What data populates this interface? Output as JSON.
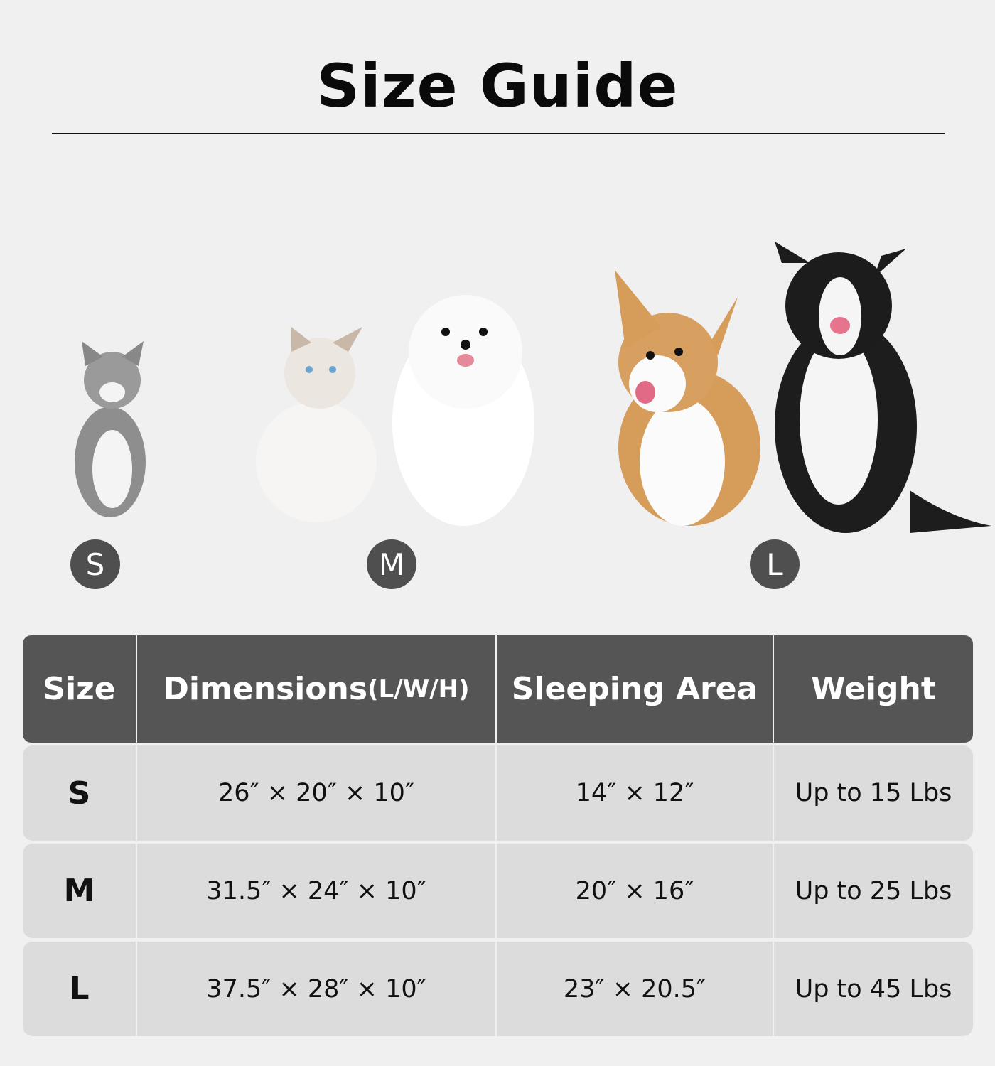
{
  "title": "Size Guide",
  "pets": [
    {
      "size": "S",
      "animals": [
        "tabby-cat"
      ]
    },
    {
      "size": "M",
      "animals": [
        "ragdoll-cat",
        "pomeranian-dog"
      ]
    },
    {
      "size": "L",
      "animals": [
        "corgi-dog",
        "border-collie-dog"
      ]
    }
  ],
  "colors": {
    "background": "#f0f0f0",
    "header": "#555555",
    "row": "#dcdcdc",
    "badge": "#4f4f4f"
  },
  "table": {
    "headers": {
      "size": "Size",
      "dimensions": "Dimensions",
      "dimensions_unit": "(L/W/H)",
      "sleeping_area": "Sleeping Area",
      "weight": "Weight"
    },
    "rows": [
      {
        "size": "S",
        "dimensions": "26″ × 20″ × 10″",
        "sleeping_area": "14″ × 12″",
        "weight": "Up to 15 Lbs"
      },
      {
        "size": "M",
        "dimensions": "31.5″ × 24″ × 10″",
        "sleeping_area": "20″ × 16″",
        "weight": "Up to 25 Lbs"
      },
      {
        "size": "L",
        "dimensions": "37.5″ × 28″ × 10″",
        "sleeping_area": "23″ × 20.5″",
        "weight": "Up to 45 Lbs"
      }
    ]
  }
}
